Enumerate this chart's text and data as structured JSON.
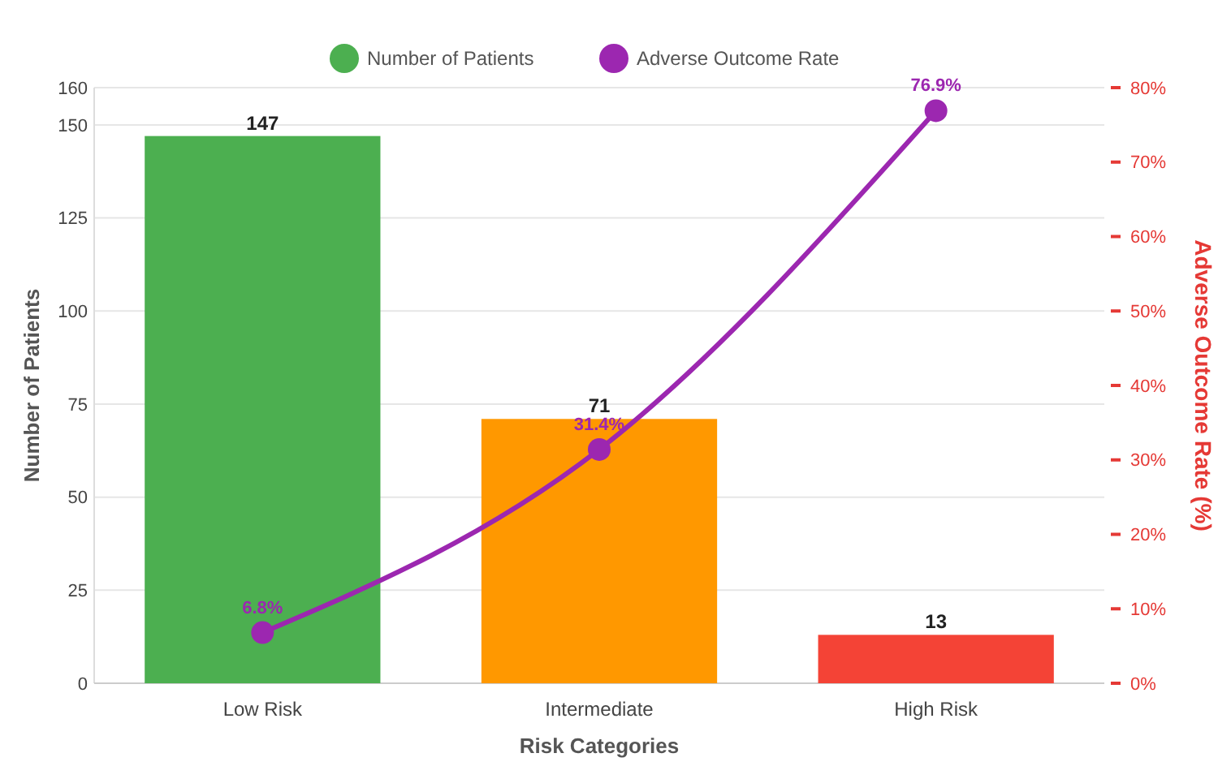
{
  "chart_data": {
    "type": "bar",
    "xlabel": "Risk Categories",
    "ylabel": "Number of Patients",
    "y2label": "Adverse Outcome Rate (%)",
    "categories": [
      "Low Risk",
      "Intermediate",
      "High Risk"
    ],
    "series": [
      {
        "name": "Number of Patients",
        "color": "#4caf50",
        "colors": [
          "#4caf50",
          "#ff9800",
          "#f44336"
        ],
        "values": [
          147,
          71,
          13
        ],
        "value_labels": [
          "147",
          "71",
          "13"
        ]
      },
      {
        "name": "Adverse Outcome Rate",
        "type": "line",
        "axis": "y2",
        "color": "#9c27b0",
        "values": [
          6.8,
          31.4,
          76.9
        ],
        "value_labels": [
          "6.8%",
          "31.4%",
          "76.9%"
        ],
        "marker": "circle"
      }
    ],
    "ylim": [
      0,
      160
    ],
    "yticks": [
      0,
      25,
      50,
      75,
      100,
      125,
      150,
      160
    ],
    "y2lim": [
      0,
      80
    ],
    "y2ticks": [
      {
        "value": 0,
        "label": "0%"
      },
      {
        "value": 10,
        "label": "10%"
      },
      {
        "value": 20,
        "label": "20%"
      },
      {
        "value": 30,
        "label": "30%"
      },
      {
        "value": 40,
        "label": "40%"
      },
      {
        "value": 50,
        "label": "50%"
      },
      {
        "value": 60,
        "label": "60%"
      },
      {
        "value": 70,
        "label": "70%"
      },
      {
        "value": 80,
        "label": "80%"
      }
    ],
    "grid": "y",
    "legend": "top"
  }
}
